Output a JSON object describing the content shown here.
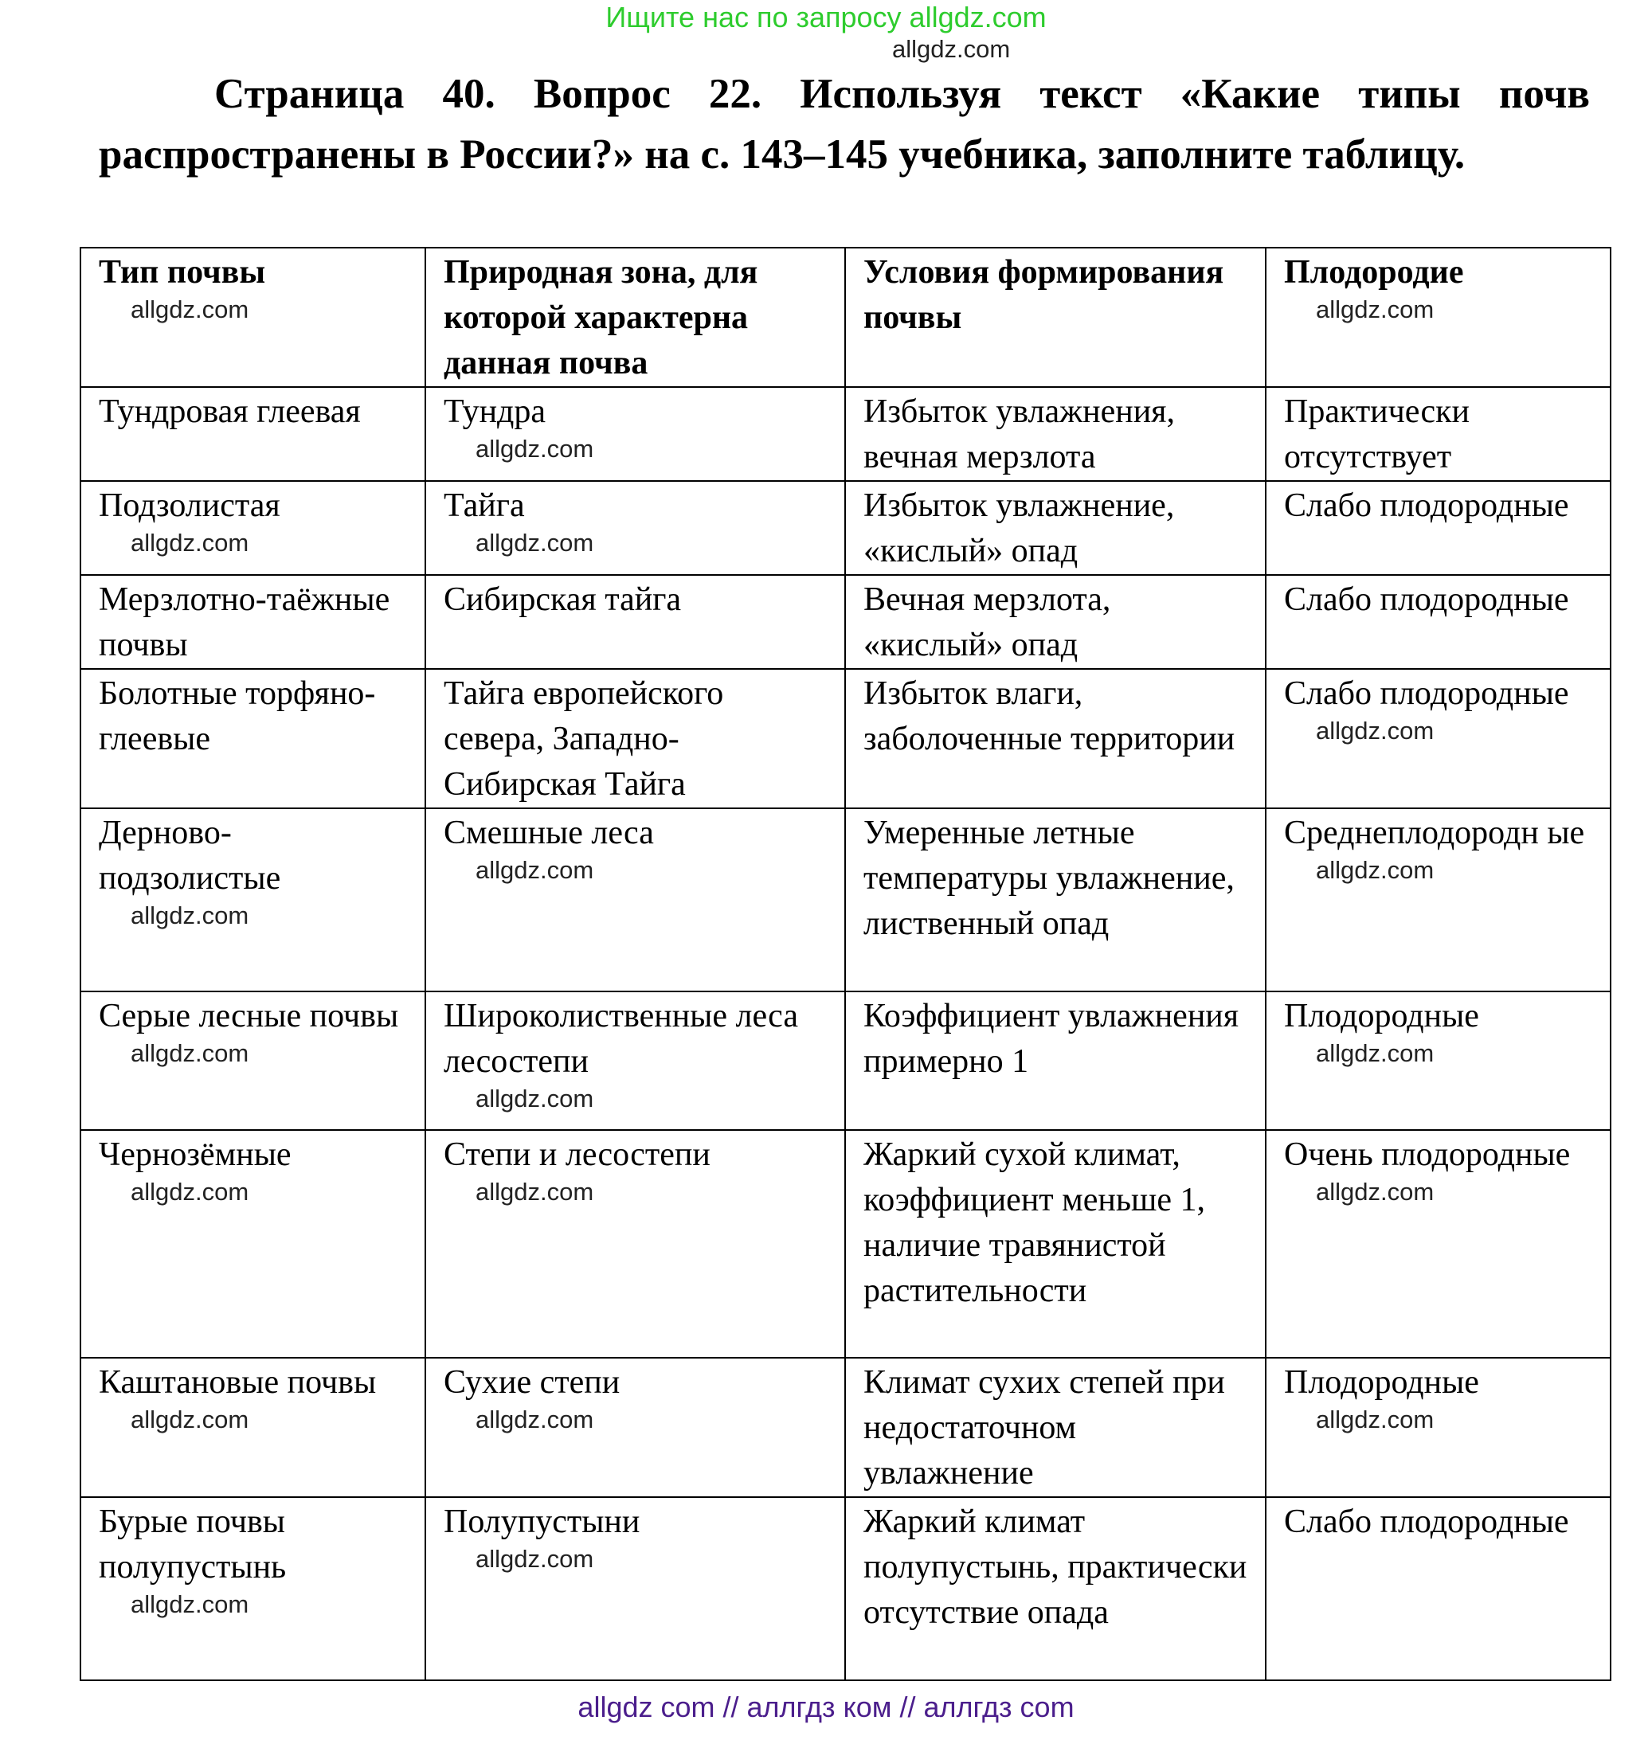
{
  "banner": "Ищите нас по запросу allgdz.com",
  "title": "Страница 40. Вопрос 22.    Используя текст «Какие типы почв распространены в России?» на с. 143–145 учебника, заполните таблицу.",
  "table": {
    "headers": [
      "Тип почвы",
      "Природная зона, для которой характерна данная почва",
      "Условия формирования почвы",
      "Плодородие"
    ],
    "rows": [
      [
        "Тундровая глеевая",
        "Тундра",
        "Избыток увлажнения, вечная мерзлота",
        "Практически отсутствует"
      ],
      [
        "Подзолистая",
        "Тайга",
        "Избыток увлажнение, «кислый» опад",
        "Слабо плодородные"
      ],
      [
        "Мерзлотно-таёжные почвы",
        "Сибирская тайга",
        "Вечная мерзлота, «кислый» опад",
        "Слабо плодородные"
      ],
      [
        "Болотные торфяно-глеевые",
        "Тайга европейского севера, Западно-Сибирская Тайга",
        "Избыток влаги, заболоченные территории",
        "Слабо плодородные"
      ],
      [
        "Дерново-подзолистые",
        "Смешные леса",
        "Умеренные летные температуры увлажнение, лиственный опад",
        "Среднеплодородн ые"
      ],
      [
        "Серые лесные почвы",
        "Широколиственные леса лесостепи",
        "Коэффициент увлажнения примерно 1",
        "Плодородные"
      ],
      [
        "Чернозёмные",
        "Степи и лесостепи",
        "Жаркий сухой климат, коэффициент меньше 1, наличие травянистой растительности",
        "Очень плодородные"
      ],
      [
        "Каштановые почвы",
        "Сухие степи",
        "Климат сухих степей при недостаточном увлажнение",
        "Плодородные"
      ],
      [
        "Бурые почвы полупустынь",
        "Полупустыни",
        "Жаркий климат полупустынь, практически отсутствие опада",
        "Слабо плодородные"
      ]
    ]
  },
  "watermarks": [
    "allgdz.com",
    "allgdz.com",
    "allgdz.com",
    "allgdz.com",
    "allgdz.com",
    "allgdz.com",
    "allgdz.com",
    "allgdz.com",
    "allgdz.com",
    "allgdz.com",
    "allgdz.com",
    "allgdz.com",
    "allgdz.com",
    "allgdz.com",
    "allgdz.com",
    "allgdz.com",
    "allgdz.com",
    "allgdz.com",
    "allgdz.com",
    "allgdz.com",
    "allgdz.com"
  ],
  "footer": "allgdz com  //  аллгдз ком  //  аллгдз com"
}
